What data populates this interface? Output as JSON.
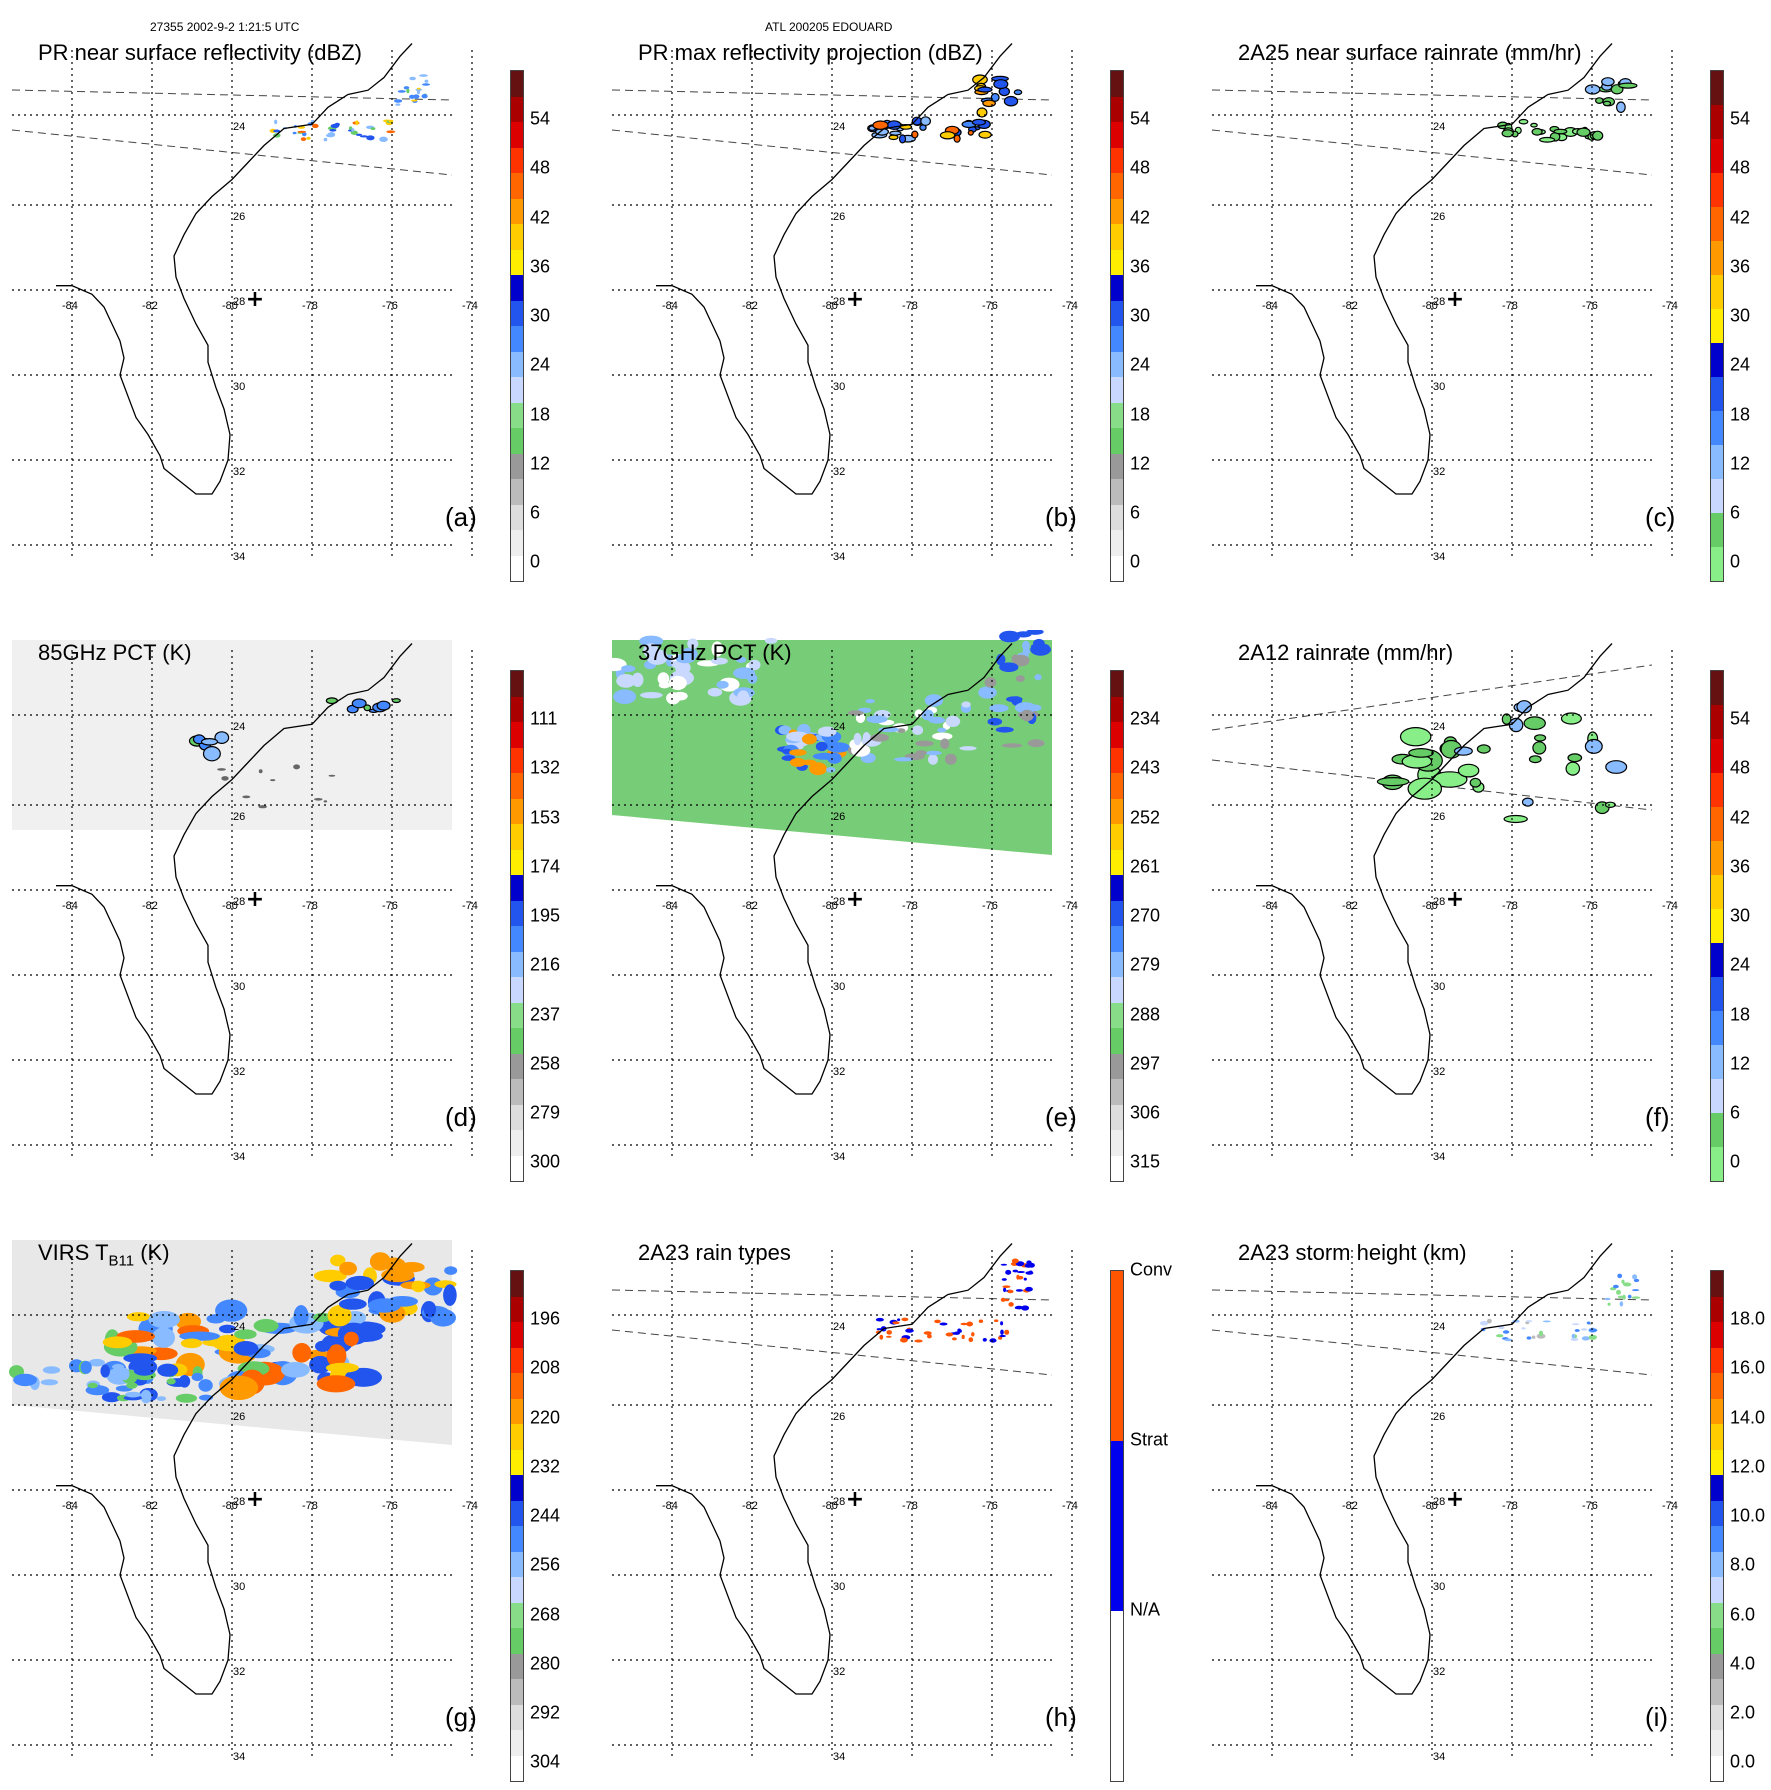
{
  "header": {
    "left": "27355 2002-9-2 1:21:5 UTC",
    "center": "ATL 200205 EDOUARD"
  },
  "lat_labels": [
    "34",
    "32",
    "30",
    "28",
    "26",
    "24"
  ],
  "lon_labels": [
    "-84",
    "-82",
    "-80",
    "-78",
    "-76",
    "-74"
  ],
  "colors": {
    "pr_scale": [
      "#ffffff",
      "#eeeeee",
      "#dddddd",
      "#bbbbbb",
      "#999999",
      "#66cc66",
      "#88dd88",
      "#c8d8ff",
      "#88bbff",
      "#4488ff",
      "#2255ee",
      "#0000cc",
      "#ffee00",
      "#ffcc00",
      "#ff9900",
      "#ff6600",
      "#ff3300",
      "#dd0000",
      "#aa0000",
      "#661111"
    ],
    "rain_scale": [
      "#88ee88",
      "#66cc66",
      "#c8d8ff",
      "#88bbff",
      "#4488ff",
      "#2255ee",
      "#0000cc",
      "#ffee00",
      "#ffcc00",
      "#ff9900",
      "#ff6600",
      "#ff3300",
      "#dd0000",
      "#aa0000",
      "#661111"
    ],
    "storm_scale": [
      "#ffffff",
      "#eeeeee",
      "#dddddd",
      "#bbbbbb",
      "#999999",
      "#66cc66",
      "#88dd88",
      "#c8d8ff",
      "#88bbff",
      "#4488ff",
      "#2255ee",
      "#0000cc",
      "#ffee00",
      "#ffcc00",
      "#ff9900",
      "#ff6600",
      "#ff3300",
      "#dd0000",
      "#aa0000",
      "#661111"
    ],
    "raintype_scale": [
      "#ffffff",
      "#0000ee",
      "#ff5500"
    ]
  },
  "panels": [
    {
      "title": "PR near surface reflectivity (dBZ)",
      "label": "(a)",
      "cb": "pr_scale",
      "ticks": [
        "54",
        "48",
        "42",
        "36",
        "30",
        "24",
        "18",
        "12",
        "6",
        "0"
      ],
      "swath": "pr",
      "content": "pr_a"
    },
    {
      "title": "PR max reflectivity projection (dBZ)",
      "label": "(b)",
      "cb": "pr_scale",
      "ticks": [
        "54",
        "48",
        "42",
        "36",
        "30",
        "24",
        "18",
        "12",
        "6",
        "0"
      ],
      "swath": "pr",
      "content": "pr_b"
    },
    {
      "title": "2A25 near surface rainrate (mm/hr)",
      "label": "(c)",
      "cb": "rain_scale",
      "ticks": [
        "54",
        "48",
        "42",
        "36",
        "30",
        "24",
        "18",
        "12",
        "6",
        "0"
      ],
      "swath": "pr",
      "content": "pr_c"
    },
    {
      "title": "85GHz PCT (K)",
      "label": "(d)",
      "cb": "pr_scale",
      "ticks": [
        "111",
        "132",
        "153",
        "174",
        "195",
        "216",
        "237",
        "258",
        "279",
        "300"
      ],
      "swath": "tmi_d",
      "content": "tmi_d"
    },
    {
      "title": "37GHz PCT (K)",
      "label": "(e)",
      "cb": "pr_scale",
      "ticks": [
        "234",
        "243",
        "252",
        "261",
        "270",
        "279",
        "288",
        "297",
        "306",
        "315"
      ],
      "swath": "tmi_e",
      "content": "tmi_e"
    },
    {
      "title": "2A12 rainrate (mm/hr)",
      "label": "(f)",
      "cb": "rain_scale",
      "ticks": [
        "54",
        "48",
        "42",
        "36",
        "30",
        "24",
        "18",
        "12",
        "6",
        "0"
      ],
      "swath": "tmi_f",
      "content": "tmi_f"
    },
    {
      "title_main": "VIRS T",
      "title_sub": "B11",
      "title_end": " (K)",
      "label": "(g)",
      "cb": "pr_scale",
      "ticks": [
        "196",
        "208",
        "220",
        "232",
        "244",
        "256",
        "268",
        "280",
        "292",
        "304"
      ],
      "swath": "virs",
      "content": "virs"
    },
    {
      "title": "2A23 rain types",
      "label": "(h)",
      "cb": "raintype_scale",
      "ticks": [
        "Conv",
        "Strat",
        "N/A"
      ],
      "swath": "pr",
      "content": "pr_h"
    },
    {
      "title": "2A23 storm height (km)",
      "label": "(i)",
      "cb": "storm_scale",
      "ticks": [
        "18.0",
        "16.0",
        "14.0",
        "12.0",
        "10.0",
        "8.0",
        "6.0",
        "4.0",
        "2.0",
        "0.0"
      ],
      "swath": "pr",
      "content": "pr_i"
    }
  ]
}
